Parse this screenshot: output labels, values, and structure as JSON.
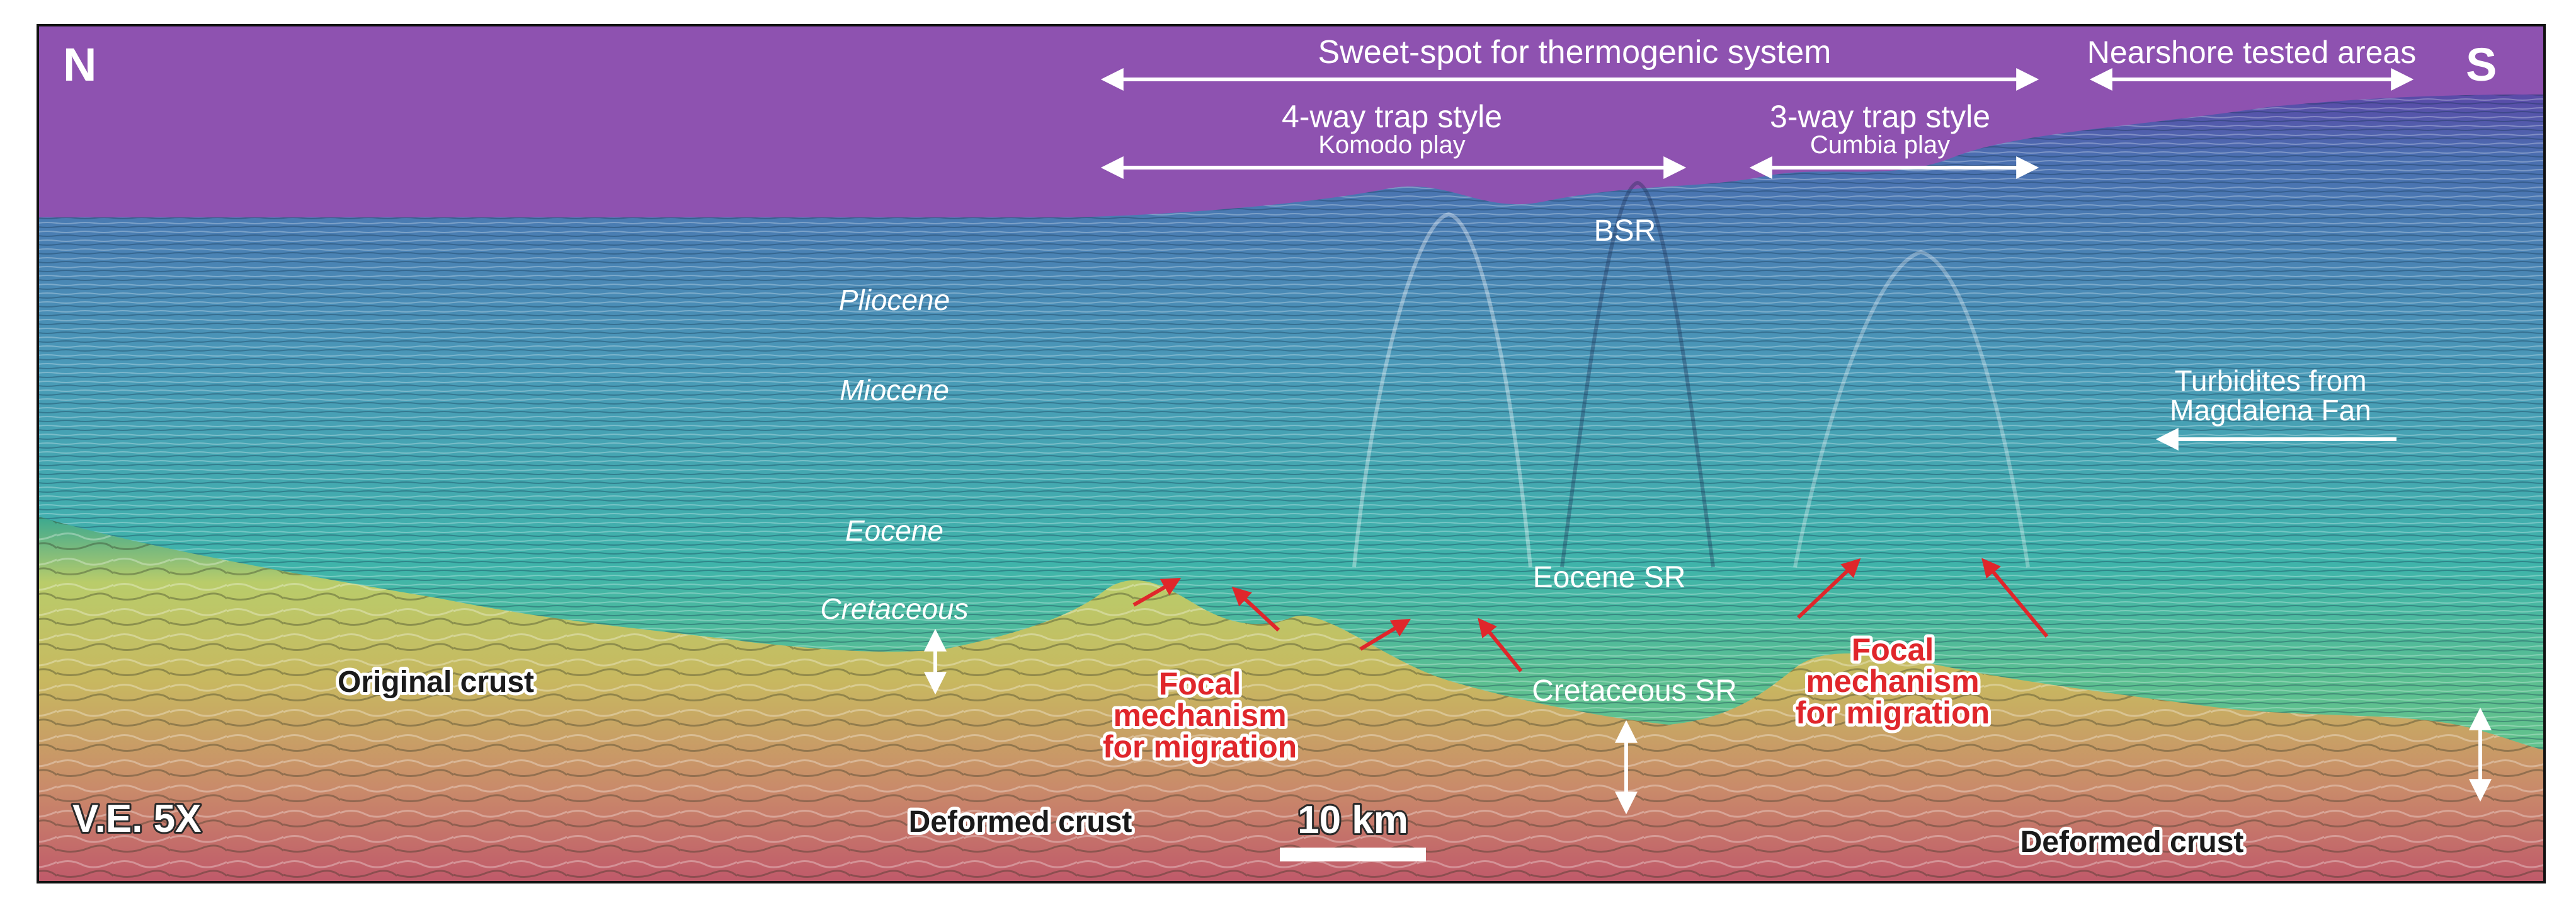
{
  "compass": {
    "north": "N",
    "south": "S"
  },
  "spans": {
    "sweet_spot": "Sweet-spot for thermogenic system",
    "nearshore": "Nearshore tested areas",
    "four_way": {
      "title": "4-way trap style",
      "sub": "Komodo play"
    },
    "three_way": {
      "title": "3-way trap style",
      "sub": "Cumbia play"
    }
  },
  "horizons": {
    "bsr": "BSR",
    "pliocene": "Pliocene",
    "miocene": "Miocene",
    "eocene": "Eocene",
    "cretaceous": "Cretaceous",
    "eocene_sr": "Eocene SR",
    "cretaceous_sr": "Cretaceous SR"
  },
  "turbidites": {
    "line1": "Turbidites from",
    "line2": "Magdalena Fan"
  },
  "crust": {
    "original": "Original crust",
    "deformed_left": "Deformed crust",
    "deformed_right": "Deformed crust"
  },
  "focal_left": {
    "line1": "Focal",
    "line2": "mechanism",
    "line3": "for migration"
  },
  "focal_right": {
    "line1": "Focal",
    "line2": "mechanism",
    "line3": "for migration"
  },
  "vertical_exaggeration": "V.E. 5X",
  "scale_bar": {
    "label": "10 km"
  },
  "colors": {
    "water": "#8e52b0",
    "upper_seismic": "#4a90b8",
    "mid_seismic": "#3fb0a8",
    "crust_yellow": "#c8c860",
    "deep_red": "#c05a6a",
    "arrow_red": "#e0262b",
    "annotation_white": "#ffffff"
  }
}
